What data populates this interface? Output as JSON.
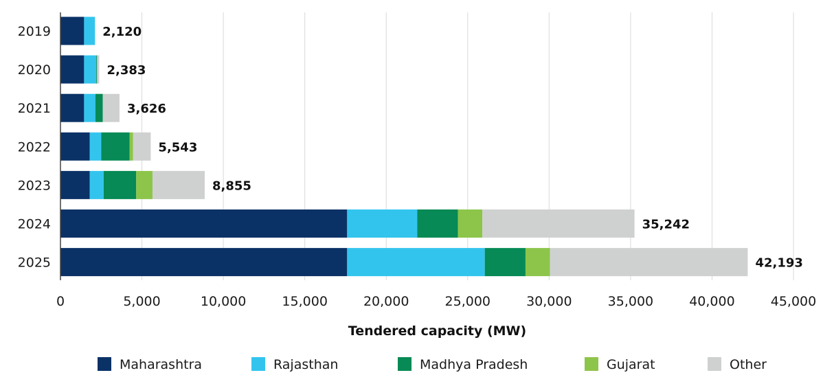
{
  "chart_data": {
    "type": "bar",
    "orientation": "horizontal",
    "stacked": true,
    "categories": [
      "2019",
      "2020",
      "2021",
      "2022",
      "2023",
      "2024",
      "2025"
    ],
    "series": [
      {
        "name": "Maharashtra",
        "color": "#0b3266",
        "values": [
          1450,
          1450,
          1450,
          1800,
          1800,
          17600,
          17600
        ]
      },
      {
        "name": "Rajasthan",
        "color": "#33c4ee",
        "values": [
          670,
          750,
          700,
          700,
          850,
          4300,
          8450
        ]
      },
      {
        "name": "Madhya Pradesh",
        "color": "#078a55",
        "values": [
          0,
          50,
          450,
          1750,
          2000,
          2500,
          2500
        ]
      },
      {
        "name": "Gujarat",
        "color": "#8dc54a",
        "values": [
          0,
          0,
          0,
          200,
          1000,
          1500,
          1500
        ]
      },
      {
        "name": "Other",
        "color": "#cfd1d0",
        "values": [
          0,
          133,
          1026,
          1093,
          3205,
          9342,
          12143
        ]
      }
    ],
    "totals": [
      "2,120",
      "2,383",
      "3,626",
      "5,543",
      "8,855",
      "35,242",
      "42,193"
    ],
    "xlim": [
      0,
      45000
    ],
    "xticks": [
      {
        "value": 0,
        "label": "0"
      },
      {
        "value": 5000,
        "label": "5,000"
      },
      {
        "value": 10000,
        "label": "10,000"
      },
      {
        "value": 15000,
        "label": "15,000"
      },
      {
        "value": 20000,
        "label": "20,000"
      },
      {
        "value": 25000,
        "label": "25,000"
      },
      {
        "value": 30000,
        "label": "30,000"
      },
      {
        "value": 35000,
        "label": "35,000"
      },
      {
        "value": 40000,
        "label": "40,000"
      },
      {
        "value": 45000,
        "label": "45,000"
      }
    ],
    "xlabel": "Tendered capacity (MW)",
    "ylabel": "",
    "grid": "vertical",
    "legend": "bottom"
  }
}
